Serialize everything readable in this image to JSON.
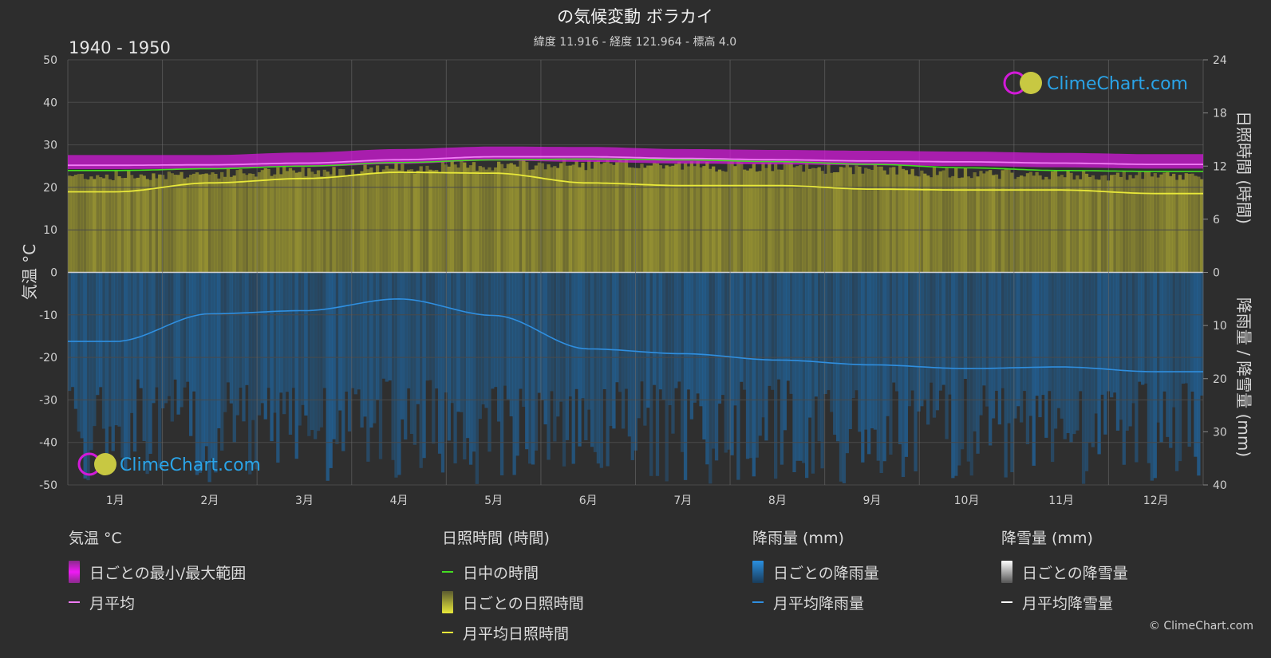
{
  "title": "の気候変動 ボラカイ",
  "subtitle": "緯度 11.916 - 経度 121.964 - 標高 4.0",
  "period": "1940 - 1950",
  "watermark": "ClimeChart.com",
  "copyright": "© ClimeChart.com",
  "colors": {
    "background": "#2d2d2d",
    "grid": "#4a4a4a",
    "temp_range": "#d21ad8",
    "temp_mean": "#f07cf5",
    "daylight": "#44dd22",
    "sunshine_fill": "#9e9a32",
    "sunshine_mean": "#e8e83a",
    "rain_fill": "#1f6aa8",
    "rain_mean": "#2f8fe0",
    "snow_mean": "#ffffff",
    "brand_text": "#2aa4e8"
  },
  "chart_data": {
    "type": "line",
    "categories": [
      "1月",
      "2月",
      "3月",
      "4月",
      "5月",
      "6月",
      "7月",
      "8月",
      "9月",
      "10月",
      "11月",
      "12月"
    ],
    "axes": {
      "left": {
        "label": "気温 °C",
        "ylim": [
          -50,
          50
        ],
        "ticks": [
          50,
          40,
          30,
          20,
          10,
          0,
          -10,
          -20,
          -30,
          -40,
          -50
        ]
      },
      "right_top": {
        "label": "日照時間 (時間)",
        "ylim": [
          0,
          24
        ],
        "ticks": [
          24,
          18,
          12,
          6,
          0
        ]
      },
      "right_bottom": {
        "label": "降雨量 / 降雪量 (mm)",
        "ylim": [
          0,
          40
        ],
        "ticks": [
          0,
          10,
          20,
          30,
          40
        ]
      }
    },
    "grid": true,
    "series": [
      {
        "name": "日ごとの最小/最大範囲",
        "unit": "°C",
        "min": [
          24.3,
          24.4,
          24.8,
          25.5,
          26.3,
          26.0,
          25.6,
          25.4,
          25.2,
          25.0,
          24.7,
          24.4
        ],
        "max": [
          27.6,
          27.6,
          28.2,
          29.0,
          29.6,
          29.5,
          29.0,
          28.8,
          28.6,
          28.4,
          28.1,
          27.8
        ]
      },
      {
        "name": "月平均",
        "unit": "°C",
        "values": [
          25.2,
          25.3,
          25.7,
          26.5,
          27.2,
          27.2,
          26.8,
          26.5,
          26.2,
          26.0,
          25.7,
          25.4
        ]
      },
      {
        "name": "日中の時間",
        "unit": "時間",
        "values": [
          11.5,
          11.7,
          12.0,
          12.4,
          12.7,
          12.8,
          12.7,
          12.5,
          12.2,
          11.8,
          11.5,
          11.4
        ]
      },
      {
        "name": "月平均日照時間",
        "unit": "時間",
        "values": [
          9.1,
          10.1,
          10.6,
          11.3,
          11.2,
          10.1,
          9.8,
          9.8,
          9.4,
          9.3,
          9.3,
          8.9
        ]
      },
      {
        "name": "月平均降雨量",
        "unit": "mm",
        "values": [
          13.0,
          7.8,
          7.2,
          5.0,
          8.1,
          14.4,
          15.3,
          16.5,
          17.4,
          18.1,
          17.8,
          18.7
        ]
      },
      {
        "name": "月平均降雪量",
        "unit": "mm",
        "values": [
          0,
          0,
          0,
          0,
          0,
          0,
          0,
          0,
          0,
          0,
          0,
          0
        ]
      }
    ]
  },
  "legend": {
    "temp": {
      "title": "気温 °C",
      "range": "日ごとの最小/最大範囲",
      "mean": "月平均"
    },
    "sun": {
      "title": "日照時間 (時間)",
      "daylight": "日中の時間",
      "daily": "日ごとの日照時間",
      "mean": "月平均日照時間"
    },
    "rain": {
      "title": "降雨量 (mm)",
      "daily": "日ごとの降雨量",
      "mean": "月平均降雨量"
    },
    "snow": {
      "title": "降雪量 (mm)",
      "daily": "日ごとの降雪量",
      "mean": "月平均降雪量"
    }
  }
}
